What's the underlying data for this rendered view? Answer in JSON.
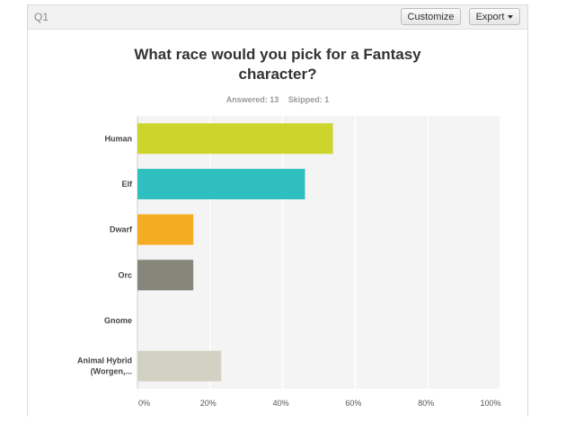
{
  "question": {
    "number": "Q1",
    "title": "What race would you pick for a Fantasy character?",
    "answered": "Answered: 13",
    "skipped": "Skipped: 1"
  },
  "toolbar": {
    "customize_label": "Customize",
    "export_label": "Export"
  },
  "chart_data": {
    "type": "bar",
    "orientation": "horizontal",
    "categories": [
      "Human",
      "Elf",
      "Dwarf",
      "Orc",
      "Gnome",
      "Animal Hybrid (Worgen,..."
    ],
    "category_lines": [
      [
        "Human"
      ],
      [
        "Elf"
      ],
      [
        "Dwarf"
      ],
      [
        "Orc"
      ],
      [
        "Gnome"
      ],
      [
        "Animal Hybrid",
        "(Worgen,..."
      ]
    ],
    "values": [
      53.85,
      46.15,
      15.38,
      15.38,
      0,
      23.08
    ],
    "colors": [
      "#cdd42b",
      "#2fbfbf",
      "#f4ad22",
      "#86877a",
      "#c0c0c0",
      "#d3d1c3"
    ],
    "xlim": [
      0,
      100
    ],
    "xticks": [
      "0%",
      "20%",
      "40%",
      "60%",
      "80%",
      "100%"
    ],
    "grid": true,
    "plot_background": "#f4f4f4"
  }
}
